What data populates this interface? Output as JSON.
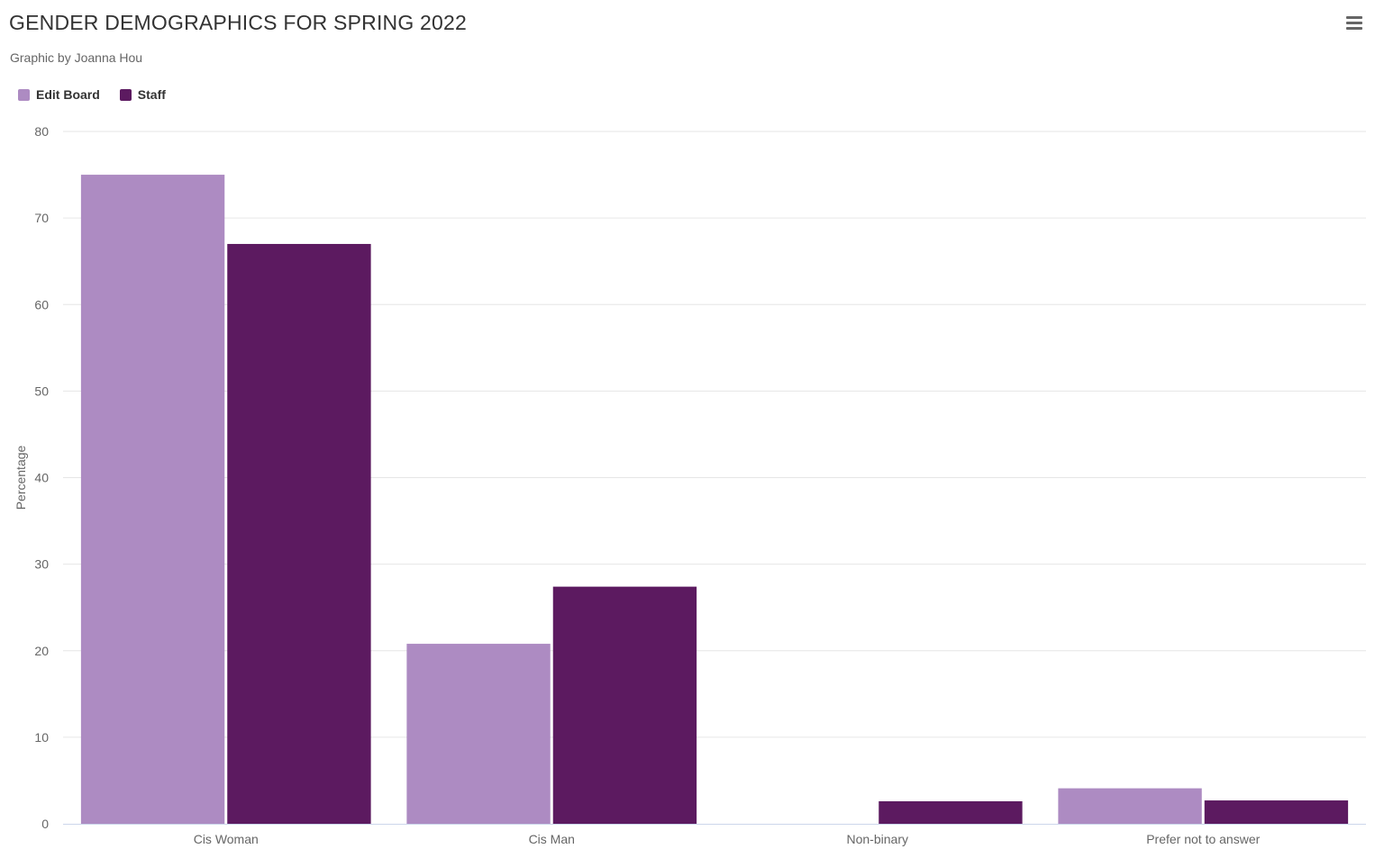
{
  "chart": {
    "title": "GENDER DEMOGRAPHICS FOR SPRING 2022",
    "subtitle": "Graphic by Joanna Hou",
    "menu_icon": "hamburger-menu-icon"
  },
  "chart_data": {
    "type": "bar",
    "title": "GENDER DEMOGRAPHICS FOR SPRING 2022",
    "subtitle": "Graphic by Joanna Hou",
    "xlabel": "",
    "ylabel": "Percentage",
    "categories": [
      "Cis Woman",
      "Cis Man",
      "Non-binary",
      "Prefer not to answer"
    ],
    "series": [
      {
        "name": "Edit Board",
        "color": "#ad8bc2",
        "values": [
          75,
          20.8,
          0,
          4.1
        ]
      },
      {
        "name": "Staff",
        "color": "#5c1a60",
        "values": [
          67,
          27.4,
          2.6,
          2.7
        ]
      }
    ],
    "ylim": [
      0,
      80
    ],
    "yticks": [
      0,
      10,
      20,
      30,
      40,
      50,
      60,
      70,
      80
    ],
    "grid": true,
    "legend_position": "top-left"
  }
}
